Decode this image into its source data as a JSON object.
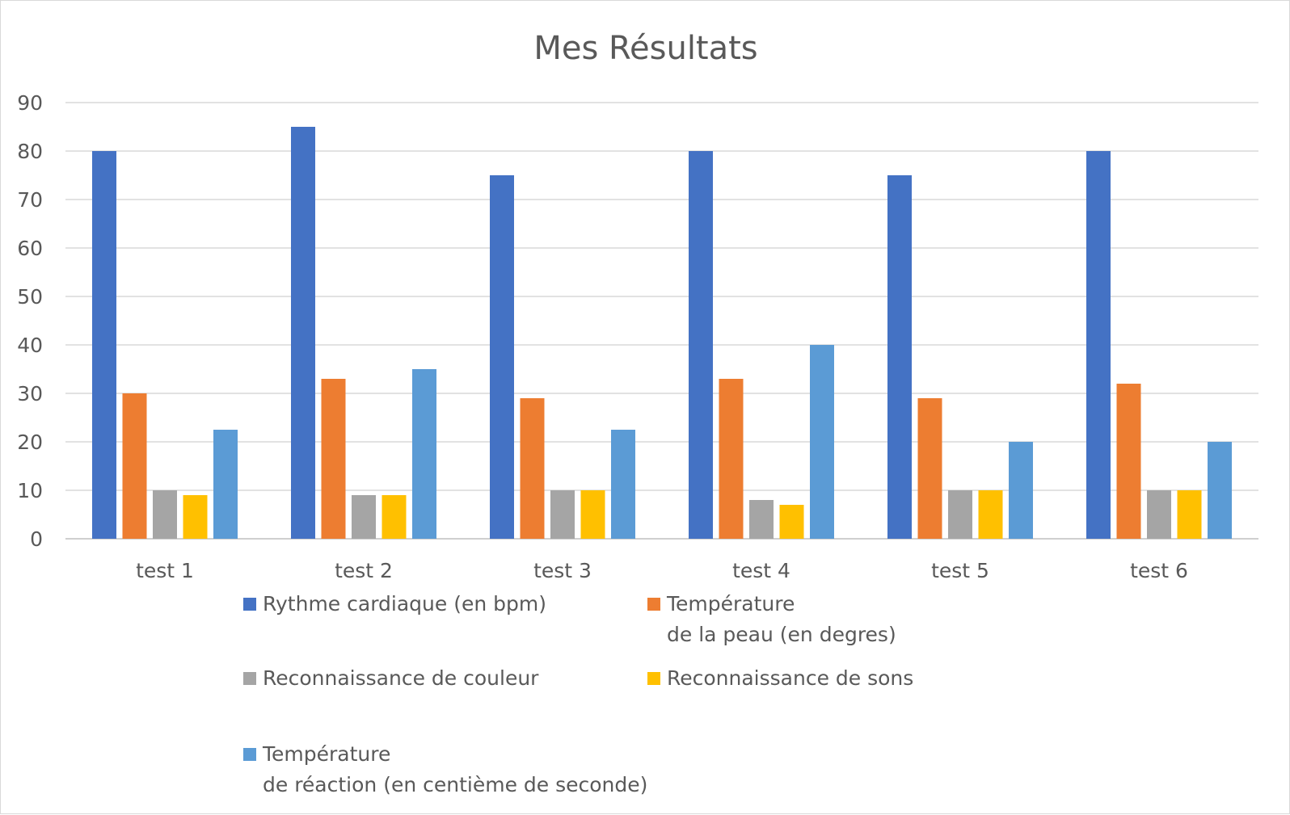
{
  "chart_data": {
    "type": "bar",
    "title": "Mes Résultats",
    "xlabel": "",
    "ylabel": "",
    "categories": [
      "test 1",
      "test 2",
      "test 3",
      "test 4",
      "test 5",
      "test 6"
    ],
    "ylim": [
      0,
      90
    ],
    "yticks": [
      "0",
      "10",
      "20",
      "30",
      "40",
      "50",
      "60",
      "70",
      "80",
      "90"
    ],
    "grid": true,
    "legend_position": "bottom",
    "series": [
      {
        "name": "Rythme cardiaque (en bpm)",
        "color": "#4472c4",
        "values": [
          80,
          85,
          75,
          80,
          75,
          80
        ]
      },
      {
        "name": "Température\nde la peau (en degres)",
        "color": "#ed7d31",
        "values": [
          30,
          33,
          29,
          33,
          29,
          32
        ]
      },
      {
        "name": "Reconnaissance de couleur",
        "color": "#a5a5a5",
        "values": [
          10,
          9,
          10,
          8,
          10,
          10
        ]
      },
      {
        "name": "Reconnaissance de sons",
        "color": "#ffc000",
        "values": [
          9,
          9,
          10,
          7,
          10,
          10
        ]
      },
      {
        "name": "Température\nde réaction (en centième de seconde)",
        "color": "#5b9bd5",
        "values": [
          22.5,
          35,
          22.5,
          40,
          20,
          20
        ]
      }
    ]
  }
}
